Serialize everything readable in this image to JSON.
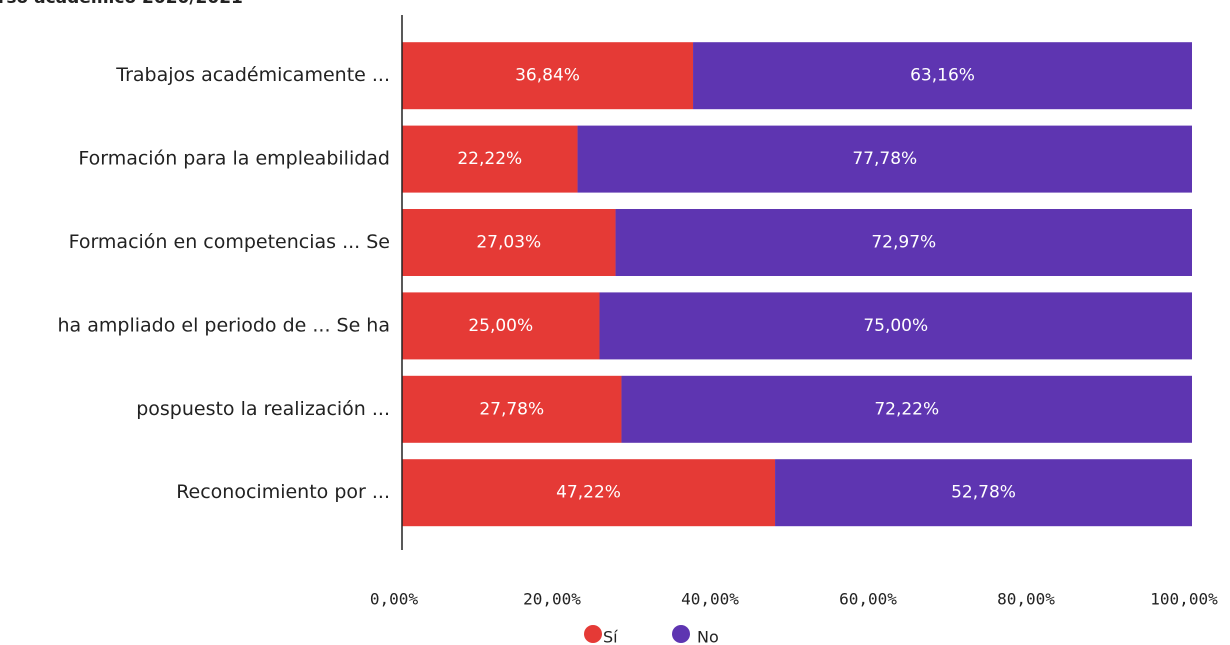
{
  "chart_data": {
    "type": "stacked_barh",
    "title": "rso académico 2020/2021",
    "categories": [
      "Trabajos académicamente ...",
      "Formación para la empleabilidad",
      "Formación en competencias ... Se",
      "ha ampliado el periodo de ... Se ha",
      "pospuesto la realización ...",
      "Reconocimiento por ..."
    ],
    "series": [
      {
        "name": "Sí",
        "color": "#e53a36",
        "values": [
          36.84,
          22.22,
          27.03,
          25.0,
          27.78,
          47.22
        ],
        "value_labels": [
          "36,84%",
          "22,22%",
          "27,03%",
          "25,00%",
          "27,78%",
          "47,22%"
        ]
      },
      {
        "name": "No",
        "color": "#5e35b1",
        "values": [
          63.16,
          77.78,
          72.97,
          75.0,
          72.22,
          52.78
        ],
        "value_labels": [
          "63,16%",
          "77,78%",
          "72,97%",
          "75,00%",
          "72,22%",
          "52,78%"
        ]
      }
    ],
    "xlim": [
      0,
      100
    ],
    "xticks": [
      {
        "value": 0,
        "label": "0,00%"
      },
      {
        "value": 20,
        "label": "20,00%"
      },
      {
        "value": 40,
        "label": "40,00%"
      },
      {
        "value": 60,
        "label": "60,00%"
      },
      {
        "value": 80,
        "label": "80,00%"
      },
      {
        "value": 100,
        "label": "100,00%"
      }
    ],
    "legend": "bottom"
  }
}
